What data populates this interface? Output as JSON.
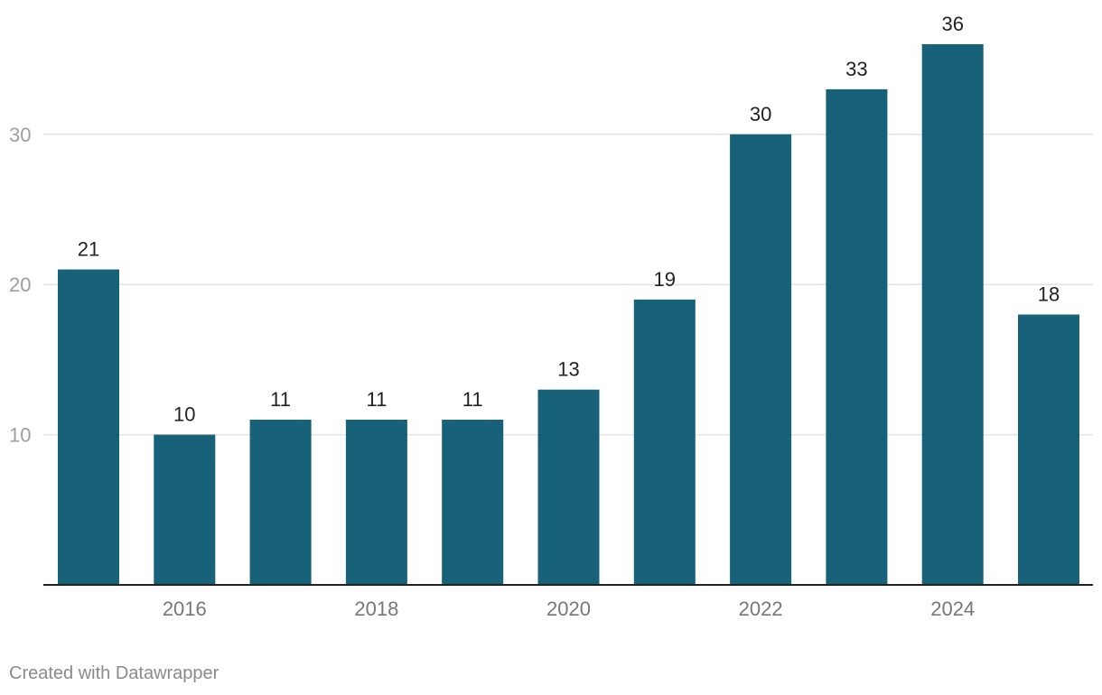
{
  "chart_data": {
    "type": "bar",
    "categories": [
      "2015",
      "2016",
      "2017",
      "2018",
      "2019",
      "2020",
      "2021",
      "2022",
      "2023",
      "2024",
      "2025"
    ],
    "values": [
      21,
      10,
      11,
      11,
      11,
      13,
      19,
      30,
      33,
      36,
      18
    ],
    "x_tick_labels": [
      "2016",
      "2018",
      "2020",
      "2022",
      "2024"
    ],
    "y_ticks": [
      10,
      20,
      30
    ],
    "ylim": [
      0,
      36
    ],
    "title": "",
    "xlabel": "",
    "ylabel": "",
    "grid": true,
    "bar_color": "#176179",
    "gridline_color": "#e3e3e3"
  },
  "footer": {
    "credit": "Created with Datawrapper"
  }
}
